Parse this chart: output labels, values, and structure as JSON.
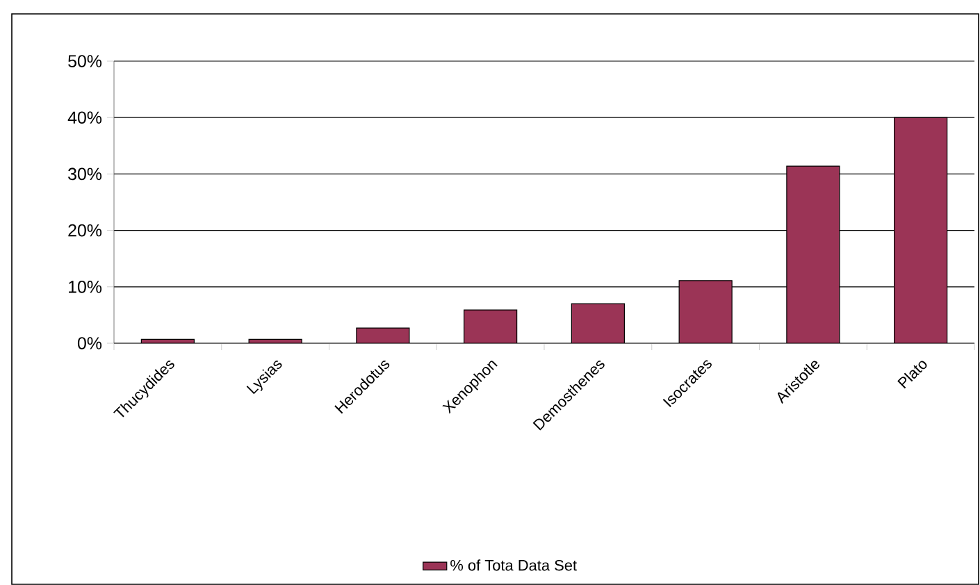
{
  "chart_data": {
    "type": "bar",
    "categories": [
      "Thucydides",
      "Lysias",
      "Herodotus",
      "Xenophon",
      "Demosthenes",
      "Isocrates",
      "Aristotle",
      "Plato"
    ],
    "series": [
      {
        "name": "% of Tota Data Set",
        "color": "#9b3456",
        "values": [
          0.7,
          0.7,
          2.7,
          5.9,
          7.0,
          11.1,
          31.4,
          40
        ]
      }
    ],
    "ylim": [
      0,
      50
    ],
    "yticks": [
      {
        "value": 0,
        "label": "0%"
      },
      {
        "value": 10,
        "label": "10%"
      },
      {
        "value": 20,
        "label": "20%"
      },
      {
        "value": 30,
        "label": "30%"
      },
      {
        "value": 40,
        "label": "40%"
      },
      {
        "value": 50,
        "label": "50%"
      }
    ],
    "grid": "y",
    "legend": "bottom"
  }
}
